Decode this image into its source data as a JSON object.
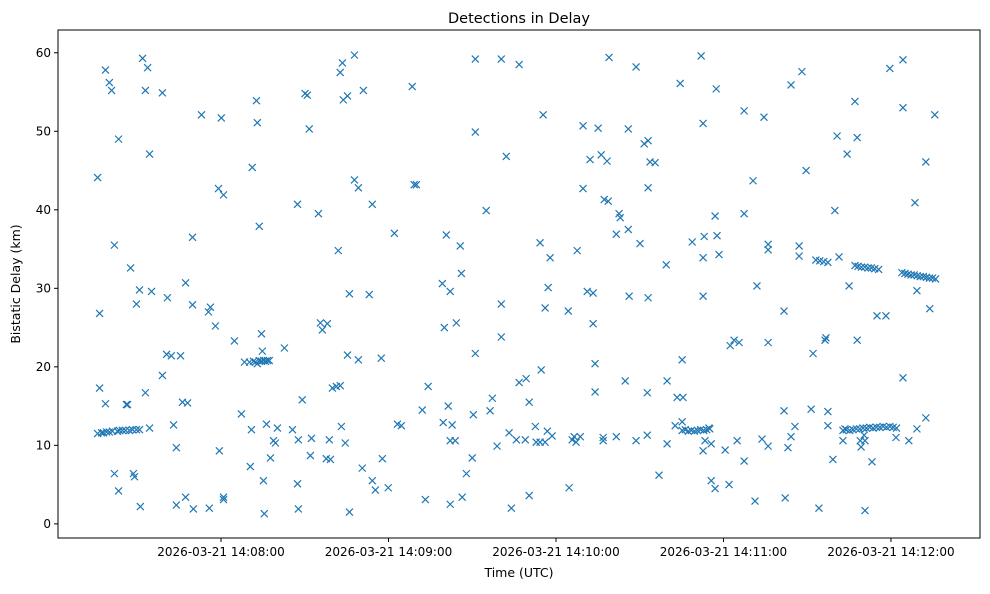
{
  "chart_data": {
    "type": "scatter",
    "title": "Detections in Delay",
    "xlabel": "Time (UTC)",
    "ylabel": "Bistatic Delay (km)",
    "x_units": "seconds after 2026-03-21 14:07:00 UTC",
    "xlim": [
      1.6,
      331.9
    ],
    "ylim": [
      -1.8,
      62.9
    ],
    "grid": false,
    "marker": "x",
    "color": "#1f77b4",
    "xticks": [
      {
        "value": 60,
        "label": "2026-03-21 14:08:00"
      },
      {
        "value": 120,
        "label": "2026-03-21 14:09:00"
      },
      {
        "value": 180,
        "label": "2026-03-21 14:10:00"
      },
      {
        "value": 240,
        "label": "2026-03-21 14:11:00"
      },
      {
        "value": 300,
        "label": "2026-03-21 14:12:00"
      }
    ],
    "yticks": [
      {
        "value": 0,
        "label": "0"
      },
      {
        "value": 10,
        "label": "10"
      },
      {
        "value": 20,
        "label": "20"
      },
      {
        "value": 30,
        "label": "30"
      },
      {
        "value": 40,
        "label": "40"
      },
      {
        "value": 50,
        "label": "50"
      },
      {
        "value": 60,
        "label": "60"
      }
    ],
    "points": [
      [
        15.8,
        44.1
      ],
      [
        16.5,
        26.8
      ],
      [
        16.5,
        17.3
      ],
      [
        15.8,
        11.5
      ],
      [
        18.6,
        15.3
      ],
      [
        18.6,
        57.8
      ],
      [
        20.0,
        56.2
      ],
      [
        20.8,
        55.2
      ],
      [
        17.2,
        11.6
      ],
      [
        17.9,
        11.6
      ],
      [
        19.0,
        11.7
      ],
      [
        20.0,
        11.7
      ],
      [
        21.1,
        11.8
      ],
      [
        22.9,
        11.8
      ],
      [
        23.6,
        11.9
      ],
      [
        24.7,
        11.9
      ],
      [
        25.8,
        11.9
      ],
      [
        27.2,
        11.9
      ],
      [
        28.3,
        12.0
      ],
      [
        29.7,
        12.0
      ],
      [
        30.8,
        12.0
      ],
      [
        21.8,
        35.5
      ],
      [
        23.3,
        49.0
      ],
      [
        21.8,
        6.4
      ],
      [
        23.3,
        4.2
      ],
      [
        26.1,
        15.2
      ],
      [
        26.5,
        15.2
      ],
      [
        27.6,
        32.6
      ],
      [
        28.6,
        6.4
      ],
      [
        29.0,
        6.0
      ],
      [
        29.7,
        28.0
      ],
      [
        31.1,
        2.2
      ],
      [
        30.8,
        29.8
      ],
      [
        31.9,
        59.3
      ],
      [
        32.9,
        55.2
      ],
      [
        33.7,
        58.1
      ],
      [
        32.9,
        16.7
      ],
      [
        34.4,
        12.2
      ],
      [
        34.4,
        47.1
      ],
      [
        35.1,
        29.6
      ],
      [
        39.0,
        54.9
      ],
      [
        39.0,
        18.9
      ],
      [
        40.5,
        21.6
      ],
      [
        40.8,
        28.8
      ],
      [
        42.2,
        21.4
      ],
      [
        43.0,
        12.6
      ],
      [
        44.0,
        9.7
      ],
      [
        44.0,
        2.4
      ],
      [
        45.5,
        21.4
      ],
      [
        46.2,
        15.5
      ],
      [
        47.3,
        3.4
      ],
      [
        47.3,
        30.7
      ],
      [
        48.0,
        15.4
      ],
      [
        49.8,
        36.5
      ],
      [
        50.1,
        1.9
      ],
      [
        49.8,
        27.9
      ],
      [
        53.0,
        52.1
      ],
      [
        55.5,
        27.0
      ],
      [
        56.2,
        27.6
      ],
      [
        55.8,
        2.0
      ],
      [
        58.0,
        25.2
      ],
      [
        59.1,
        42.7
      ],
      [
        60.1,
        51.7
      ],
      [
        59.4,
        9.3
      ],
      [
        60.9,
        41.9
      ],
      [
        60.9,
        3.4
      ],
      [
        60.9,
        3.1
      ],
      [
        64.8,
        23.3
      ],
      [
        67.3,
        14.0
      ],
      [
        68.4,
        20.6
      ],
      [
        70.2,
        20.6
      ],
      [
        71.6,
        20.7
      ],
      [
        72.3,
        20.6
      ],
      [
        73.0,
        20.4
      ],
      [
        73.7,
        20.8
      ],
      [
        74.5,
        20.7
      ],
      [
        75.2,
        20.8
      ],
      [
        75.9,
        20.7
      ],
      [
        76.6,
        20.8
      ],
      [
        77.3,
        20.8
      ],
      [
        70.5,
        7.3
      ],
      [
        71.2,
        45.4
      ],
      [
        70.9,
        12.0
      ],
      [
        72.7,
        53.9
      ],
      [
        73.0,
        51.1
      ],
      [
        73.7,
        37.9
      ],
      [
        74.5,
        24.2
      ],
      [
        74.8,
        22.0
      ],
      [
        75.2,
        5.5
      ],
      [
        75.5,
        1.3
      ],
      [
        76.3,
        12.7
      ],
      [
        77.7,
        8.4
      ],
      [
        78.8,
        10.6
      ],
      [
        79.5,
        10.3
      ],
      [
        80.2,
        12.2
      ],
      [
        82.7,
        22.4
      ],
      [
        85.6,
        12.0
      ],
      [
        87.4,
        40.7
      ],
      [
        87.4,
        5.1
      ],
      [
        87.7,
        1.9
      ],
      [
        87.7,
        10.7
      ],
      [
        89.1,
        15.8
      ],
      [
        90.1,
        54.8
      ],
      [
        90.9,
        54.6
      ],
      [
        91.6,
        50.3
      ],
      [
        92.4,
        10.9
      ],
      [
        92.0,
        8.7
      ],
      [
        94.9,
        39.5
      ],
      [
        95.6,
        25.6
      ],
      [
        96.3,
        24.7
      ],
      [
        98.1,
        25.5
      ],
      [
        97.7,
        8.3
      ],
      [
        99.2,
        8.2
      ],
      [
        98.8,
        10.7
      ],
      [
        99.9,
        17.3
      ],
      [
        101.3,
        17.5
      ],
      [
        102.7,
        17.6
      ],
      [
        102.0,
        34.8
      ],
      [
        102.7,
        57.5
      ],
      [
        103.5,
        58.7
      ],
      [
        103.8,
        54.0
      ],
      [
        105.3,
        54.5
      ],
      [
        103.1,
        12.4
      ],
      [
        104.5,
        10.3
      ],
      [
        105.3,
        21.5
      ],
      [
        106.0,
        29.3
      ],
      [
        106.0,
        1.5
      ],
      [
        107.8,
        59.7
      ],
      [
        107.8,
        43.8
      ],
      [
        109.2,
        42.8
      ],
      [
        109.2,
        20.9
      ],
      [
        110.6,
        7.1
      ],
      [
        111.0,
        55.2
      ],
      [
        113.1,
        29.2
      ],
      [
        114.2,
        40.7
      ],
      [
        114.2,
        5.5
      ],
      [
        115.3,
        4.3
      ],
      [
        117.4,
        21.1
      ],
      [
        117.8,
        8.3
      ],
      [
        119.9,
        4.6
      ],
      [
        122.1,
        37.0
      ],
      [
        123.2,
        12.7
      ],
      [
        124.6,
        12.5
      ],
      [
        128.5,
        55.7
      ],
      [
        129.2,
        43.2
      ],
      [
        130.0,
        43.2
      ],
      [
        132.1,
        14.5
      ],
      [
        133.2,
        3.1
      ],
      [
        134.2,
        17.5
      ],
      [
        139.6,
        12.9
      ],
      [
        140.0,
        25.0
      ],
      [
        139.3,
        30.6
      ],
      [
        140.7,
        36.8
      ],
      [
        141.4,
        15.0
      ],
      [
        142.1,
        2.5
      ],
      [
        142.1,
        29.6
      ],
      [
        142.1,
        10.6
      ],
      [
        142.8,
        12.6
      ],
      [
        144.3,
        25.6
      ],
      [
        143.9,
        10.6
      ],
      [
        145.7,
        35.4
      ],
      [
        146.1,
        31.9
      ],
      [
        146.4,
        3.4
      ],
      [
        147.9,
        6.4
      ],
      [
        150.0,
        8.4
      ],
      [
        150.4,
        13.9
      ],
      [
        151.1,
        21.7
      ],
      [
        151.1,
        49.9
      ],
      [
        151.1,
        59.2
      ],
      [
        155.0,
        39.9
      ],
      [
        156.4,
        14.4
      ],
      [
        157.2,
        16.0
      ],
      [
        158.9,
        9.9
      ],
      [
        160.4,
        28.0
      ],
      [
        160.4,
        23.8
      ],
      [
        160.4,
        59.2
      ],
      [
        162.2,
        46.8
      ],
      [
        163.2,
        11.6
      ],
      [
        164.0,
        2.0
      ],
      [
        165.8,
        10.7
      ],
      [
        166.8,
        58.5
      ],
      [
        166.8,
        18.0
      ],
      [
        169.3,
        18.5
      ],
      [
        169.0,
        10.7
      ],
      [
        170.4,
        15.5
      ],
      [
        170.4,
        3.6
      ],
      [
        172.6,
        12.4
      ],
      [
        172.9,
        10.4
      ],
      [
        174.7,
        19.6
      ],
      [
        174.3,
        10.4
      ],
      [
        175.4,
        52.1
      ],
      [
        176.1,
        10.4
      ],
      [
        176.1,
        27.5
      ],
      [
        174.3,
        35.8
      ],
      [
        177.9,
        33.9
      ],
      [
        177.2,
        30.1
      ],
      [
        176.9,
        11.8
      ],
      [
        178.6,
        11.2
      ],
      [
        184.4,
        27.1
      ],
      [
        184.7,
        4.6
      ],
      [
        185.8,
        10.7
      ],
      [
        186.5,
        11.1
      ],
      [
        187.2,
        10.4
      ],
      [
        187.6,
        34.8
      ],
      [
        188.7,
        11.1
      ],
      [
        189.7,
        50.7
      ],
      [
        189.7,
        42.7
      ],
      [
        191.2,
        29.6
      ],
      [
        192.2,
        46.4
      ],
      [
        193.3,
        29.4
      ],
      [
        193.3,
        25.5
      ],
      [
        194.0,
        20.4
      ],
      [
        194.0,
        16.8
      ],
      [
        195.1,
        50.4
      ],
      [
        196.2,
        47.0
      ],
      [
        196.9,
        11.0
      ],
      [
        196.9,
        10.6
      ],
      [
        197.3,
        41.3
      ],
      [
        198.3,
        46.2
      ],
      [
        198.7,
        41.1
      ],
      [
        199.0,
        59.4
      ],
      [
        201.6,
        36.9
      ],
      [
        201.6,
        11.1
      ],
      [
        202.6,
        39.5
      ],
      [
        203.0,
        39.0
      ],
      [
        204.8,
        18.2
      ],
      [
        205.9,
        50.3
      ],
      [
        205.9,
        37.5
      ],
      [
        206.2,
        29.0
      ],
      [
        208.7,
        10.6
      ],
      [
        208.7,
        58.2
      ],
      [
        210.1,
        35.7
      ],
      [
        211.6,
        48.4
      ],
      [
        213.0,
        48.8
      ],
      [
        213.0,
        42.8
      ],
      [
        212.7,
        16.7
      ],
      [
        213.0,
        28.8
      ],
      [
        212.7,
        11.3
      ],
      [
        213.7,
        46.1
      ],
      [
        215.5,
        46.0
      ],
      [
        216.9,
        6.2
      ],
      [
        219.5,
        33.0
      ],
      [
        219.8,
        18.2
      ],
      [
        219.8,
        10.2
      ],
      [
        222.7,
        12.5
      ],
      [
        223.4,
        16.1
      ],
      [
        224.5,
        56.1
      ],
      [
        225.2,
        20.9
      ],
      [
        225.5,
        16.1
      ],
      [
        225.2,
        13.0
      ],
      [
        225.2,
        11.9
      ],
      [
        226.3,
        12.0
      ],
      [
        227.4,
        11.8
      ],
      [
        228.5,
        11.9
      ],
      [
        229.6,
        11.8
      ],
      [
        230.7,
        11.9
      ],
      [
        231.8,
        12.0
      ],
      [
        232.9,
        11.9
      ],
      [
        234.0,
        12.0
      ],
      [
        235.1,
        12.1
      ],
      [
        228.8,
        35.9
      ],
      [
        232.0,
        59.6
      ],
      [
        233.1,
        36.6
      ],
      [
        232.7,
        51.0
      ],
      [
        232.7,
        33.9
      ],
      [
        232.7,
        29.0
      ],
      [
        232.7,
        9.3
      ],
      [
        233.4,
        10.6
      ],
      [
        234.8,
        12.2
      ],
      [
        235.6,
        10.2
      ],
      [
        235.6,
        5.5
      ],
      [
        237.0,
        4.5
      ],
      [
        237.0,
        39.2
      ],
      [
        237.4,
        55.4
      ],
      [
        237.7,
        36.7
      ],
      [
        238.4,
        34.3
      ],
      [
        240.6,
        9.4
      ],
      [
        242.0,
        5.0
      ],
      [
        242.4,
        22.7
      ],
      [
        243.8,
        23.4
      ],
      [
        244.9,
        10.6
      ],
      [
        245.6,
        23.1
      ],
      [
        247.4,
        8.0
      ],
      [
        247.4,
        52.6
      ],
      [
        247.4,
        39.5
      ],
      [
        250.6,
        43.7
      ],
      [
        251.3,
        2.9
      ],
      [
        252.0,
        30.3
      ],
      [
        253.8,
        10.8
      ],
      [
        254.5,
        51.8
      ],
      [
        256.0,
        23.1
      ],
      [
        256.0,
        9.9
      ],
      [
        256.0,
        35.6
      ],
      [
        256.0,
        34.9
      ],
      [
        261.7,
        27.1
      ],
      [
        261.7,
        14.4
      ],
      [
        262.1,
        3.3
      ],
      [
        263.1,
        9.7
      ],
      [
        264.2,
        55.9
      ],
      [
        264.2,
        11.1
      ],
      [
        265.6,
        12.4
      ],
      [
        267.1,
        35.4
      ],
      [
        267.1,
        34.1
      ],
      [
        268.1,
        57.6
      ],
      [
        269.6,
        45.0
      ],
      [
        271.4,
        14.6
      ],
      [
        272.1,
        21.7
      ],
      [
        274.2,
        2.0
      ],
      [
        273.1,
        33.6
      ],
      [
        274.5,
        33.5
      ],
      [
        275.9,
        33.4
      ],
      [
        277.4,
        33.3
      ],
      [
        276.4,
        23.4
      ],
      [
        276.7,
        23.7
      ],
      [
        277.4,
        14.3
      ],
      [
        277.4,
        12.5
      ],
      [
        279.2,
        8.2
      ],
      [
        279.9,
        39.9
      ],
      [
        280.7,
        49.4
      ],
      [
        281.4,
        34.0
      ],
      [
        282.8,
        10.6
      ],
      [
        284.3,
        47.1
      ],
      [
        285.0,
        30.3
      ],
      [
        282.8,
        11.9
      ],
      [
        284.0,
        12.0
      ],
      [
        285.2,
        11.9
      ],
      [
        286.4,
        12.0
      ],
      [
        287.6,
        12.1
      ],
      [
        288.8,
        12.1
      ],
      [
        290.0,
        12.2
      ],
      [
        291.2,
        12.2
      ],
      [
        292.4,
        12.3
      ],
      [
        293.6,
        12.2
      ],
      [
        294.8,
        12.3
      ],
      [
        296.0,
        12.3
      ],
      [
        297.2,
        12.4
      ],
      [
        298.4,
        12.3
      ],
      [
        299.6,
        12.4
      ],
      [
        300.8,
        12.3
      ],
      [
        302.0,
        12.2
      ],
      [
        283.5,
        12.1
      ],
      [
        290.4,
        11.3
      ],
      [
        287.1,
        53.8
      ],
      [
        287.1,
        32.9
      ],
      [
        288.2,
        32.8
      ],
      [
        289.4,
        32.7
      ],
      [
        290.6,
        32.7
      ],
      [
        291.8,
        32.6
      ],
      [
        293.0,
        32.6
      ],
      [
        294.2,
        32.5
      ],
      [
        295.6,
        32.4
      ],
      [
        287.9,
        49.2
      ],
      [
        287.9,
        23.4
      ],
      [
        289.0,
        10.6
      ],
      [
        289.3,
        9.8
      ],
      [
        290.7,
        1.7
      ],
      [
        290.7,
        10.6
      ],
      [
        293.2,
        7.9
      ],
      [
        295.0,
        26.5
      ],
      [
        298.2,
        26.5
      ],
      [
        299.6,
        58.0
      ],
      [
        301.8,
        11.0
      ],
      [
        303.9,
        32.0
      ],
      [
        305.0,
        31.9
      ],
      [
        306.1,
        31.8
      ],
      [
        307.2,
        31.7
      ],
      [
        308.3,
        31.7
      ],
      [
        309.4,
        31.6
      ],
      [
        310.5,
        31.5
      ],
      [
        311.6,
        31.5
      ],
      [
        312.7,
        31.4
      ],
      [
        313.8,
        31.3
      ],
      [
        314.9,
        31.3
      ],
      [
        316.0,
        31.2
      ],
      [
        304.3,
        59.1
      ],
      [
        304.3,
        53.0
      ],
      [
        304.3,
        18.6
      ],
      [
        306.4,
        10.6
      ],
      [
        308.6,
        40.9
      ],
      [
        309.3,
        29.7
      ],
      [
        309.3,
        12.1
      ],
      [
        312.5,
        46.1
      ],
      [
        312.5,
        13.5
      ],
      [
        313.9,
        27.4
      ],
      [
        315.7,
        52.1
      ]
    ]
  }
}
